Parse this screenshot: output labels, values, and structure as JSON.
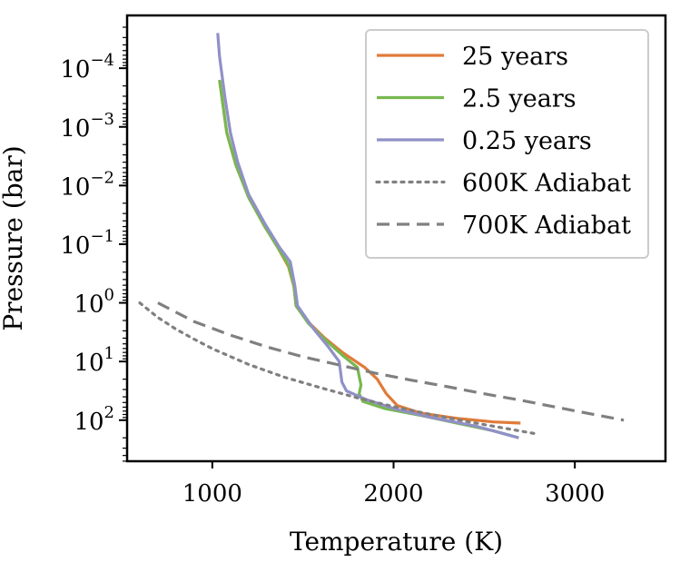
{
  "chart_data": {
    "type": "line",
    "title": "",
    "xlabel": "Temperature (K)",
    "ylabel": "Pressure (bar)",
    "xlim": [
      530,
      3500
    ],
    "ylim_log10": [
      2.7,
      -4.9
    ],
    "y_scale": "log",
    "y_inverted": true,
    "x_ticks": [
      1000,
      2000,
      3000
    ],
    "x_tick_labels": [
      "1000",
      "2000",
      "3000"
    ],
    "y_ticks_exp": [
      -4,
      -3,
      -2,
      -1,
      0,
      1,
      2
    ],
    "y_tick_labels": [
      {
        "base": "10",
        "exp": "−4"
      },
      {
        "base": "10",
        "exp": "−3"
      },
      {
        "base": "10",
        "exp": "−2"
      },
      {
        "base": "10",
        "exp": "−1"
      },
      {
        "base": "10",
        "exp": "0"
      },
      {
        "base": "10",
        "exp": "1"
      },
      {
        "base": "10",
        "exp": "2"
      }
    ],
    "legend_position": "top-right",
    "series": [
      {
        "name": "25 years",
        "color": "#e07b39",
        "style": "solid",
        "points": [
          [
            1040,
            -3.8
          ],
          [
            1080,
            -2.9
          ],
          [
            1130,
            -2.35
          ],
          [
            1200,
            -1.8
          ],
          [
            1290,
            -1.3
          ],
          [
            1360,
            -0.95
          ],
          [
            1420,
            -0.62
          ],
          [
            1450,
            -0.28
          ],
          [
            1462,
            0.05
          ],
          [
            1520,
            0.3
          ],
          [
            1620,
            0.6
          ],
          [
            1720,
            0.85
          ],
          [
            1840,
            1.1
          ],
          [
            1910,
            1.3
          ],
          [
            1960,
            1.55
          ],
          [
            2020,
            1.75
          ],
          [
            2150,
            1.88
          ],
          [
            2350,
            1.97
          ],
          [
            2550,
            2.03
          ],
          [
            2700,
            2.05
          ]
        ]
      },
      {
        "name": "2.5 years",
        "color": "#77b84f",
        "style": "solid",
        "points": [
          [
            1040,
            -3.8
          ],
          [
            1080,
            -2.9
          ],
          [
            1130,
            -2.35
          ],
          [
            1200,
            -1.8
          ],
          [
            1290,
            -1.3
          ],
          [
            1360,
            -0.95
          ],
          [
            1420,
            -0.65
          ],
          [
            1450,
            -0.3
          ],
          [
            1462,
            0.05
          ],
          [
            1530,
            0.35
          ],
          [
            1620,
            0.62
          ],
          [
            1720,
            0.9
          ],
          [
            1800,
            1.1
          ],
          [
            1820,
            1.4
          ],
          [
            1810,
            1.55
          ],
          [
            1830,
            1.68
          ],
          [
            1950,
            1.8
          ],
          [
            2150,
            1.92
          ],
          [
            2350,
            2.05
          ],
          [
            2550,
            2.18
          ],
          [
            2690,
            2.3
          ]
        ]
      },
      {
        "name": "0.25 years",
        "color": "#9090c8",
        "style": "solid",
        "points": [
          [
            1030,
            -4.6
          ],
          [
            1040,
            -4.2
          ],
          [
            1070,
            -3.5
          ],
          [
            1100,
            -2.9
          ],
          [
            1140,
            -2.4
          ],
          [
            1200,
            -1.85
          ],
          [
            1290,
            -1.35
          ],
          [
            1370,
            -0.95
          ],
          [
            1430,
            -0.7
          ],
          [
            1455,
            -0.3
          ],
          [
            1470,
            0.05
          ],
          [
            1560,
            0.45
          ],
          [
            1640,
            0.75
          ],
          [
            1700,
            1.0
          ],
          [
            1715,
            1.35
          ],
          [
            1740,
            1.5
          ],
          [
            1850,
            1.65
          ],
          [
            2000,
            1.8
          ],
          [
            2200,
            1.95
          ],
          [
            2450,
            2.1
          ],
          [
            2690,
            2.3
          ]
        ]
      },
      {
        "name": "600K Adiabat",
        "color": "#808080",
        "style": "dotted",
        "points": [
          [
            600,
            0.0
          ],
          [
            700,
            0.25
          ],
          [
            800,
            0.45
          ],
          [
            900,
            0.62
          ],
          [
            1000,
            0.78
          ],
          [
            1200,
            1.05
          ],
          [
            1400,
            1.27
          ],
          [
            1600,
            1.45
          ],
          [
            1800,
            1.62
          ],
          [
            2000,
            1.77
          ],
          [
            2200,
            1.9
          ],
          [
            2400,
            2.02
          ],
          [
            2600,
            2.13
          ],
          [
            2800,
            2.24
          ]
        ]
      },
      {
        "name": "700K Adiabat",
        "color": "#808080",
        "style": "dashed",
        "points": [
          [
            700,
            0.0
          ],
          [
            900,
            0.32
          ],
          [
            1100,
            0.55
          ],
          [
            1300,
            0.75
          ],
          [
            1500,
            0.92
          ],
          [
            1700,
            1.06
          ],
          [
            1900,
            1.2
          ],
          [
            2100,
            1.32
          ],
          [
            2300,
            1.43
          ],
          [
            2500,
            1.55
          ],
          [
            2700,
            1.66
          ],
          [
            2900,
            1.78
          ],
          [
            3100,
            1.9
          ],
          [
            3270,
            2.0
          ]
        ]
      }
    ]
  }
}
